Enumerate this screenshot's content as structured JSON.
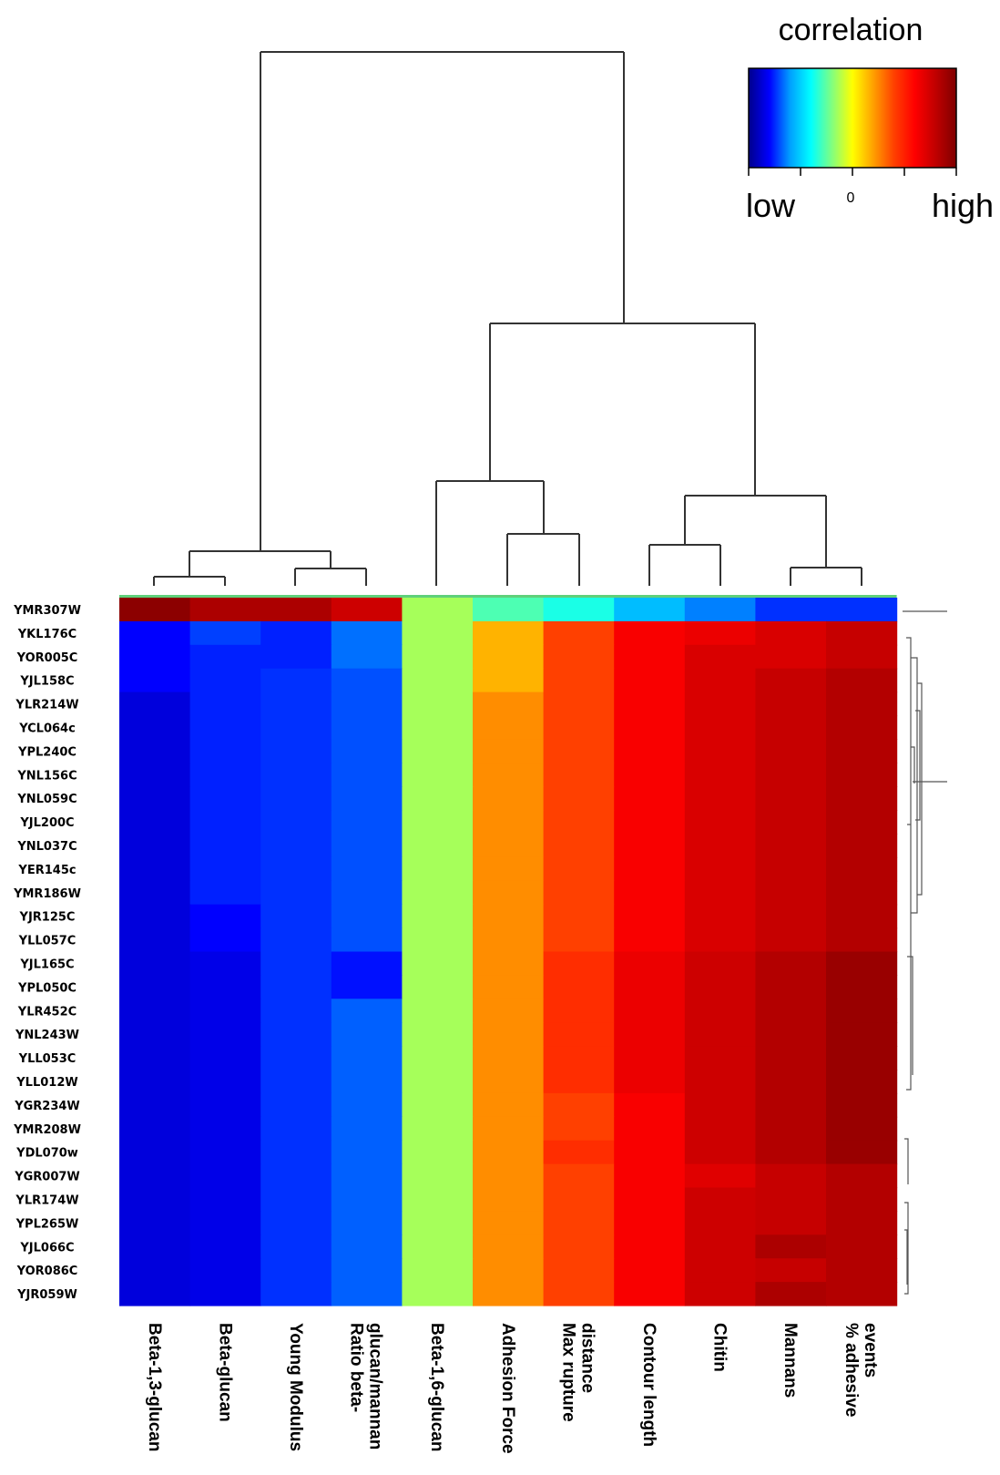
{
  "chart_data": {
    "type": "heatmap",
    "columns": [
      "Beta-1,3-glucan",
      "Beta-glucan",
      "Young Modulus",
      "Ratio beta-glucan/mannan",
      "Beta-1,6-glucan",
      "Adhesion Force",
      "Max rupture distance",
      "Contour length",
      "Chitin",
      "Mannans",
      "% adhesive events"
    ],
    "column_label_lines": [
      [
        "Beta-1,3-glucan"
      ],
      [
        "Beta-glucan"
      ],
      [
        "Young Modulus"
      ],
      [
        "Ratio beta-",
        "glucan/mannan"
      ],
      [
        "Beta-1,6-glucan"
      ],
      [
        "Adhesion Force"
      ],
      [
        "Max rupture",
        "distance"
      ],
      [
        "Contour length"
      ],
      [
        "Chitin"
      ],
      [
        "Mannans"
      ],
      [
        "% adhesive",
        "events"
      ]
    ],
    "rows": [
      "YMR307W",
      "YKL176C",
      "YOR005C",
      "YJL158C",
      "YLR214W",
      "YCL064c",
      "YPL240C",
      "YNL156C",
      "YNL059C",
      "YJL200C",
      "YNL037C",
      "YER145c",
      "YMR186W",
      "YJR125C",
      "YLL057C",
      "YJL165C",
      "YPL050C",
      "YLR452C",
      "YNL243W",
      "YLL053C",
      "YLL012W",
      "YGR234W",
      "YMR208W",
      "YDL070w",
      "YGR007W",
      "YLR174W",
      "YPL265W",
      "YJL066C",
      "YOR086C",
      "YJR059W"
    ],
    "values": [
      [
        0.98,
        0.93,
        0.93,
        0.88,
        0.43,
        0.36,
        0.32,
        0.23,
        0.18,
        0.13,
        0.13
      ],
      [
        0.1,
        0.14,
        0.12,
        0.17,
        0.43,
        0.58,
        0.7,
        0.81,
        0.83,
        0.86,
        0.89
      ],
      [
        0.1,
        0.12,
        0.12,
        0.17,
        0.43,
        0.58,
        0.7,
        0.81,
        0.86,
        0.86,
        0.89
      ],
      [
        0.1,
        0.12,
        0.13,
        0.15,
        0.43,
        0.58,
        0.7,
        0.81,
        0.86,
        0.89,
        0.92
      ],
      [
        0.07,
        0.12,
        0.13,
        0.15,
        0.43,
        0.62,
        0.7,
        0.81,
        0.86,
        0.89,
        0.92
      ],
      [
        0.07,
        0.12,
        0.13,
        0.15,
        0.43,
        0.62,
        0.7,
        0.81,
        0.86,
        0.89,
        0.92
      ],
      [
        0.07,
        0.12,
        0.13,
        0.15,
        0.43,
        0.62,
        0.7,
        0.81,
        0.86,
        0.89,
        0.92
      ],
      [
        0.07,
        0.12,
        0.13,
        0.15,
        0.43,
        0.62,
        0.7,
        0.81,
        0.86,
        0.89,
        0.92
      ],
      [
        0.07,
        0.12,
        0.13,
        0.15,
        0.43,
        0.62,
        0.7,
        0.81,
        0.86,
        0.89,
        0.92
      ],
      [
        0.07,
        0.12,
        0.13,
        0.15,
        0.43,
        0.62,
        0.7,
        0.81,
        0.86,
        0.89,
        0.92
      ],
      [
        0.07,
        0.12,
        0.13,
        0.15,
        0.43,
        0.62,
        0.7,
        0.81,
        0.86,
        0.89,
        0.92
      ],
      [
        0.07,
        0.12,
        0.13,
        0.15,
        0.43,
        0.62,
        0.7,
        0.81,
        0.86,
        0.89,
        0.92
      ],
      [
        0.07,
        0.12,
        0.13,
        0.15,
        0.43,
        0.62,
        0.7,
        0.81,
        0.86,
        0.89,
        0.92
      ],
      [
        0.07,
        0.1,
        0.13,
        0.15,
        0.43,
        0.62,
        0.7,
        0.81,
        0.86,
        0.89,
        0.92
      ],
      [
        0.07,
        0.1,
        0.13,
        0.15,
        0.43,
        0.62,
        0.7,
        0.81,
        0.86,
        0.89,
        0.92
      ],
      [
        0.07,
        0.08,
        0.13,
        0.11,
        0.43,
        0.62,
        0.73,
        0.83,
        0.88,
        0.92,
        0.96
      ],
      [
        0.07,
        0.08,
        0.13,
        0.11,
        0.43,
        0.62,
        0.73,
        0.83,
        0.88,
        0.92,
        0.96
      ],
      [
        0.07,
        0.08,
        0.13,
        0.16,
        0.43,
        0.62,
        0.73,
        0.83,
        0.88,
        0.92,
        0.96
      ],
      [
        0.07,
        0.08,
        0.13,
        0.16,
        0.43,
        0.62,
        0.73,
        0.83,
        0.88,
        0.92,
        0.96
      ],
      [
        0.07,
        0.08,
        0.13,
        0.16,
        0.43,
        0.62,
        0.73,
        0.83,
        0.88,
        0.92,
        0.96
      ],
      [
        0.07,
        0.08,
        0.13,
        0.16,
        0.43,
        0.62,
        0.73,
        0.83,
        0.88,
        0.92,
        0.96
      ],
      [
        0.07,
        0.08,
        0.13,
        0.16,
        0.43,
        0.62,
        0.7,
        0.81,
        0.88,
        0.92,
        0.96
      ],
      [
        0.07,
        0.08,
        0.13,
        0.16,
        0.43,
        0.62,
        0.7,
        0.81,
        0.88,
        0.92,
        0.96
      ],
      [
        0.07,
        0.08,
        0.13,
        0.16,
        0.43,
        0.62,
        0.73,
        0.81,
        0.88,
        0.92,
        0.96
      ],
      [
        0.07,
        0.08,
        0.13,
        0.16,
        0.43,
        0.62,
        0.7,
        0.81,
        0.85,
        0.89,
        0.92
      ],
      [
        0.07,
        0.08,
        0.13,
        0.16,
        0.43,
        0.62,
        0.7,
        0.81,
        0.88,
        0.89,
        0.92
      ],
      [
        0.07,
        0.08,
        0.13,
        0.16,
        0.43,
        0.62,
        0.7,
        0.81,
        0.88,
        0.89,
        0.92
      ],
      [
        0.07,
        0.08,
        0.13,
        0.16,
        0.43,
        0.62,
        0.7,
        0.81,
        0.88,
        0.93,
        0.92
      ],
      [
        0.07,
        0.08,
        0.13,
        0.16,
        0.43,
        0.62,
        0.7,
        0.81,
        0.88,
        0.89,
        0.92
      ],
      [
        0.07,
        0.08,
        0.13,
        0.16,
        0.43,
        0.62,
        0.7,
        0.81,
        0.88,
        0.93,
        0.92
      ]
    ],
    "color_scale": [
      "#00008b",
      "#0000ff",
      "#00a0ff",
      "#00ffff",
      "#80ff80",
      "#ffff00",
      "#ffa000",
      "#ff4000",
      "#ff0000",
      "#c00000",
      "#7f0000"
    ],
    "legend": {
      "title": "correlation",
      "low_label": "low",
      "high_label": "high",
      "mid_tick_label": "0",
      "placement": "top-right"
    },
    "column_dendrogram": true,
    "row_dendrogram": true
  }
}
